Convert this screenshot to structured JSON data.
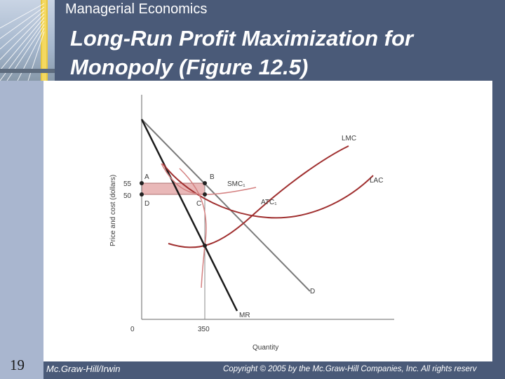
{
  "header": {
    "course_title": "Managerial Economics",
    "slide_title_line1": "Long-Run Profit Maximization for",
    "slide_title_line2": "Monopoly   (Figure 12.5)"
  },
  "footer": {
    "slide_number": "19",
    "publisher": "Mc.Graw-Hill/Irwin",
    "copyright": "Copyright © 2005 by the Mc.Graw-Hill Companies, Inc. All rights reserv"
  },
  "figure": {
    "y_axis_label": "Price and cost (dollars)",
    "x_axis_label": "Quantity",
    "origin_label": "0",
    "x_tick_label": "350",
    "y_tick_labels": [
      "55",
      "50"
    ],
    "points": {
      "A": "A",
      "B": "B",
      "C": "C",
      "D": "D"
    },
    "curves": {
      "lmc": "LMC",
      "smc": "SMC₁",
      "atc": "ATC₁",
      "lac": "LAC",
      "demand": "D",
      "mr": "MR"
    }
  },
  "colors": {
    "header_bg": "#4a5a78",
    "curve_red": "#a03030",
    "curve_light_red": "#d48080",
    "profit_fill": "#e9b8b8",
    "demand_gray": "#7a7a7a"
  }
}
